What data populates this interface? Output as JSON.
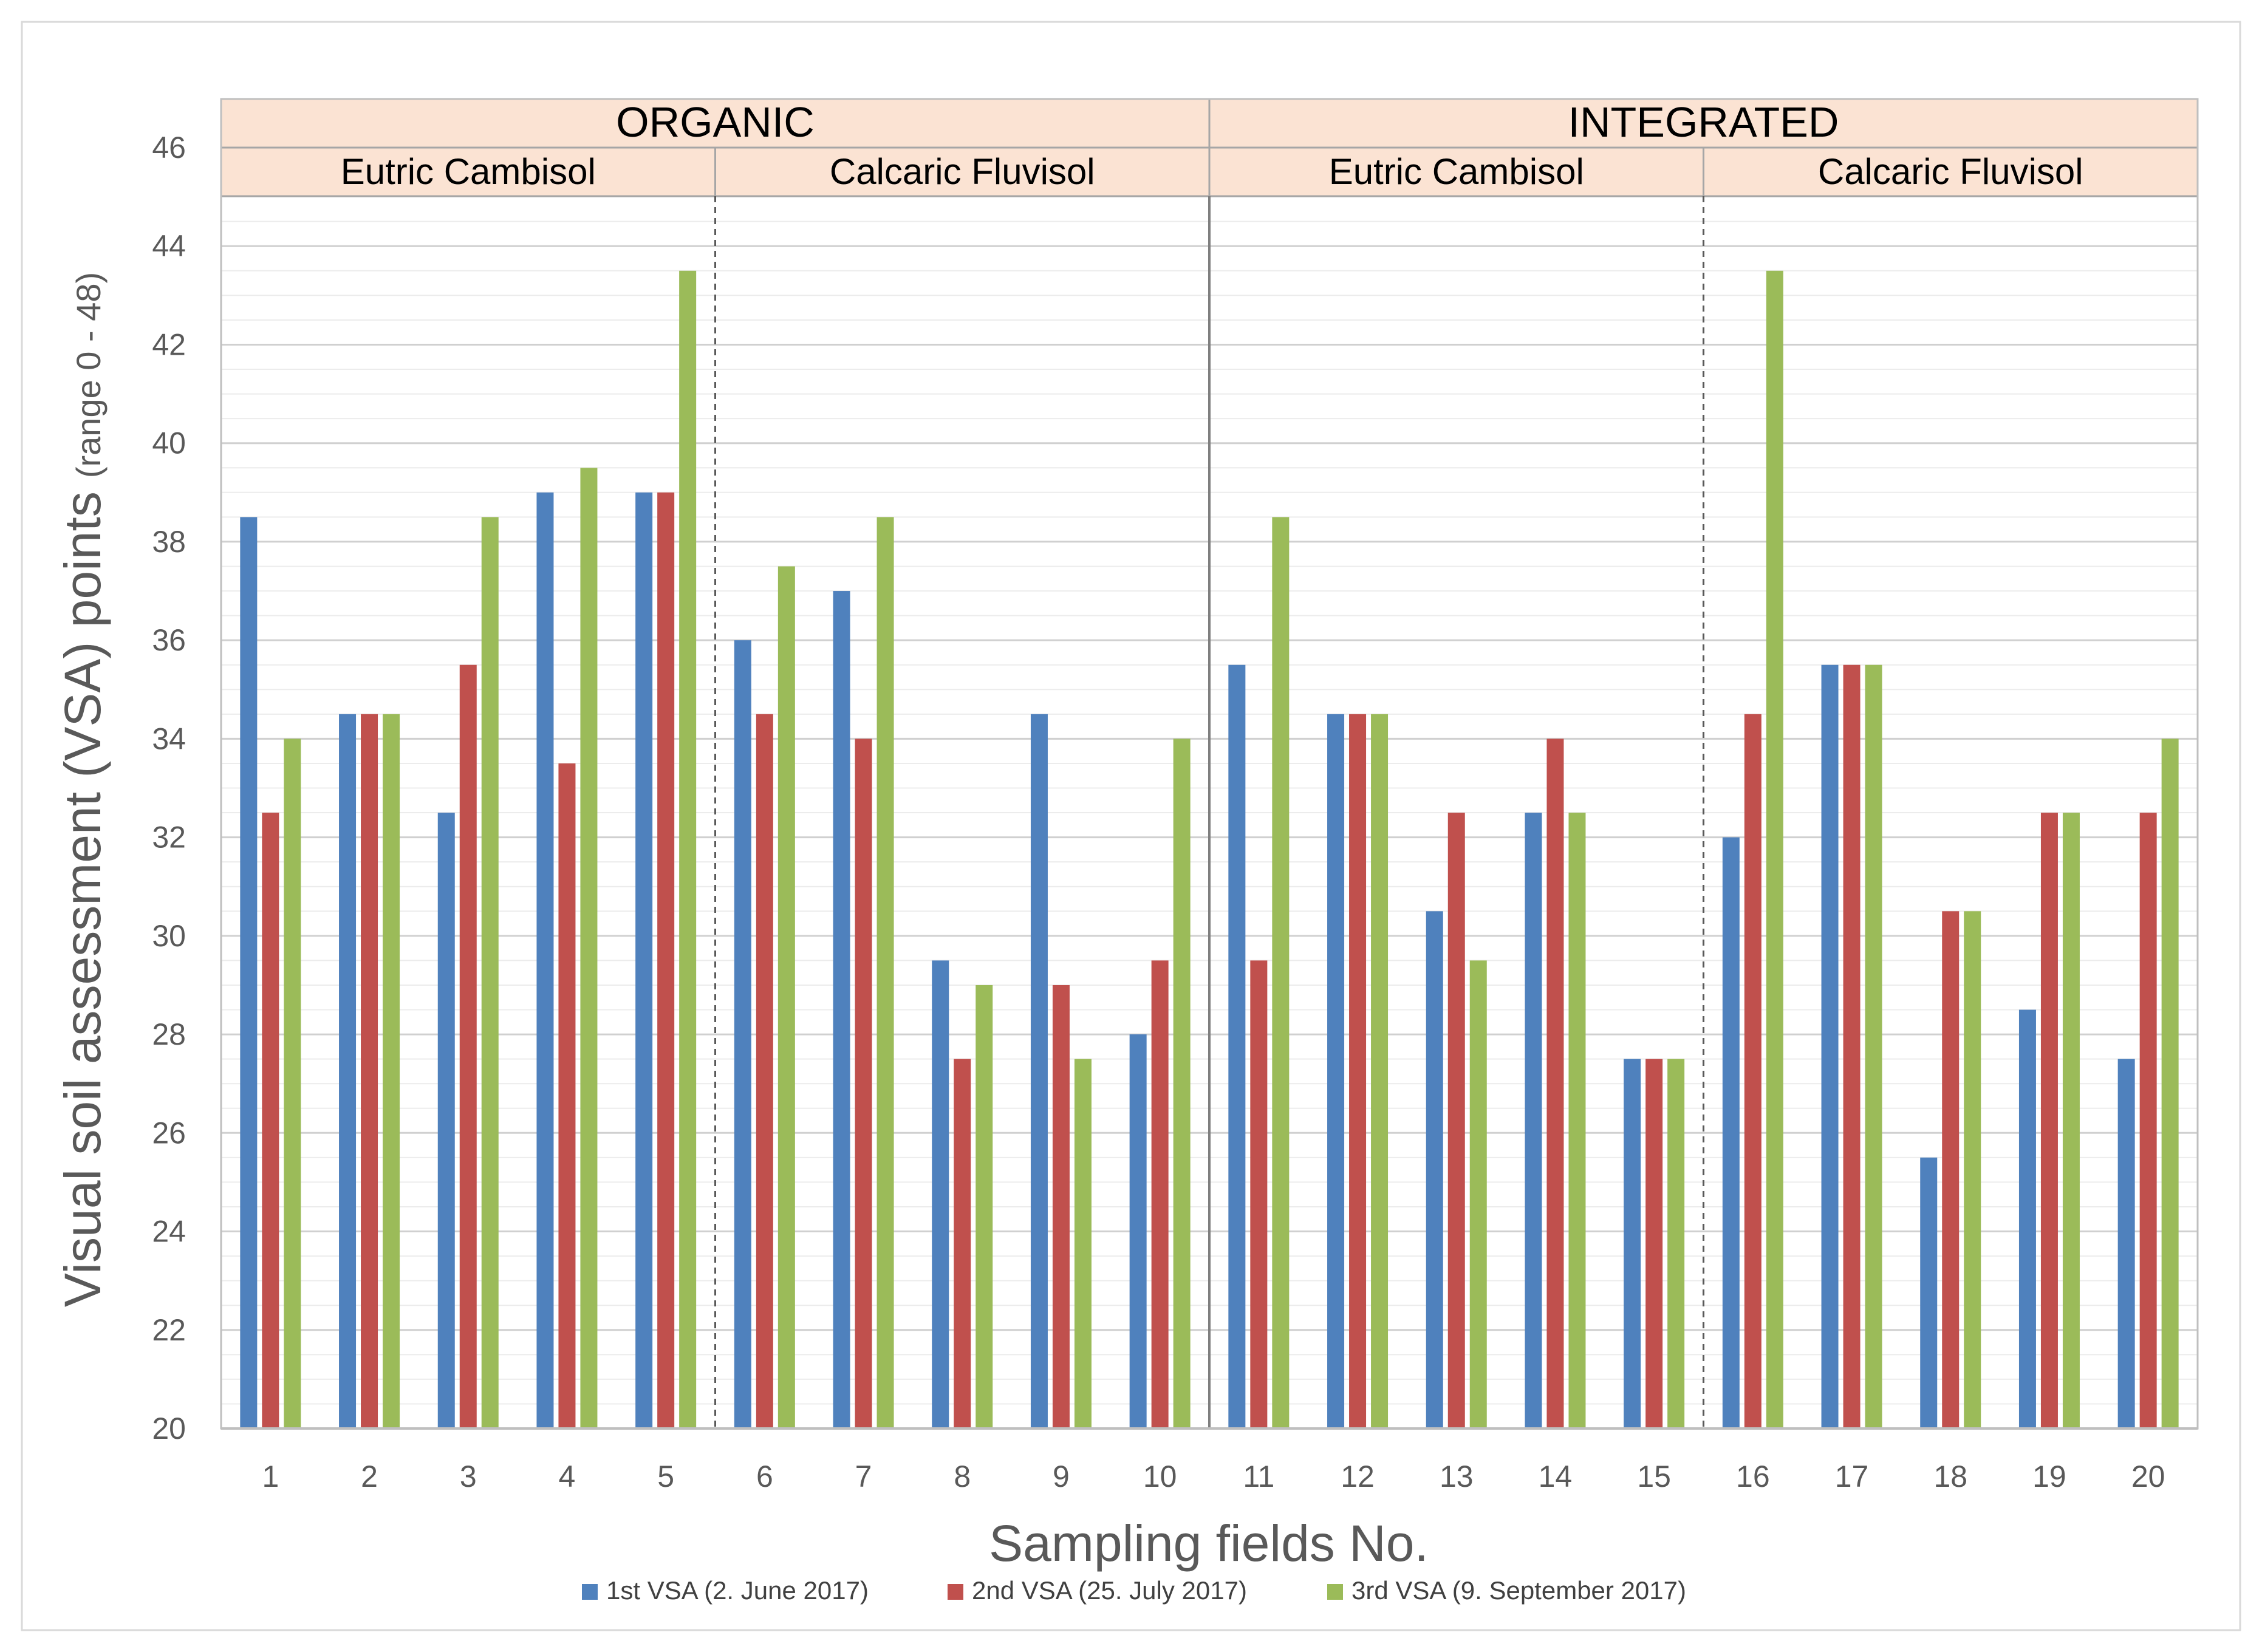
{
  "chart_data": {
    "type": "bar",
    "categories": [
      "1",
      "2",
      "3",
      "4",
      "5",
      "6",
      "7",
      "8",
      "9",
      "10",
      "11",
      "12",
      "13",
      "14",
      "15",
      "16",
      "17",
      "18",
      "19",
      "20"
    ],
    "series": [
      {
        "name": "1st VSA (2. June 2017)",
        "color": "#4f81bd",
        "values": [
          38.5,
          34.5,
          32.5,
          39,
          39,
          36,
          37,
          29.5,
          34.5,
          28,
          35.5,
          34.5,
          30.5,
          32.5,
          27.5,
          32,
          35.5,
          25.5,
          28.5,
          27.5
        ]
      },
      {
        "name": "2nd VSA (25. July 2017)",
        "color": "#c0504d",
        "values": [
          32.5,
          34.5,
          35.5,
          33.5,
          39,
          34.5,
          34,
          27.5,
          29,
          29.5,
          29.5,
          34.5,
          32.5,
          34,
          27.5,
          34.5,
          35.5,
          30.5,
          32.5,
          32.5
        ]
      },
      {
        "name": "3rd VSA (9. September 2017)",
        "color": "#9bbb59",
        "values": [
          34,
          34.5,
          38.5,
          39.5,
          43.5,
          37.5,
          38.5,
          29,
          27.5,
          34,
          38.5,
          34.5,
          29.5,
          32.5,
          27.5,
          43.5,
          35.5,
          30.5,
          32.5,
          34
        ]
      }
    ],
    "ylim": [
      20,
      46
    ],
    "yticks": [
      "20",
      "22",
      "24",
      "26",
      "28",
      "30",
      "32",
      "34",
      "36",
      "38",
      "40",
      "42",
      "44",
      "46"
    ],
    "ylabel": "Visual soil assessment (VSA) points",
    "ylabel_sub": "(range 0 - 48)",
    "xlabel": "Sampling fields No.",
    "legend_position": "bottom",
    "groups": [
      {
        "label": "ORGANIC",
        "from": 1,
        "to": 10
      },
      {
        "label": "INTEGRATED",
        "from": 11,
        "to": 20
      }
    ],
    "subgroups": [
      {
        "label": "Eutric Cambisol",
        "from": 1,
        "to": 5
      },
      {
        "label": "Calcaric Fluvisol",
        "from": 6,
        "to": 10
      },
      {
        "label": "Eutric Cambisol",
        "from": 11,
        "to": 15
      },
      {
        "label": "Calcaric Fluvisol",
        "from": 16,
        "to": 20
      }
    ],
    "header_fill": "#fbe3d3"
  }
}
